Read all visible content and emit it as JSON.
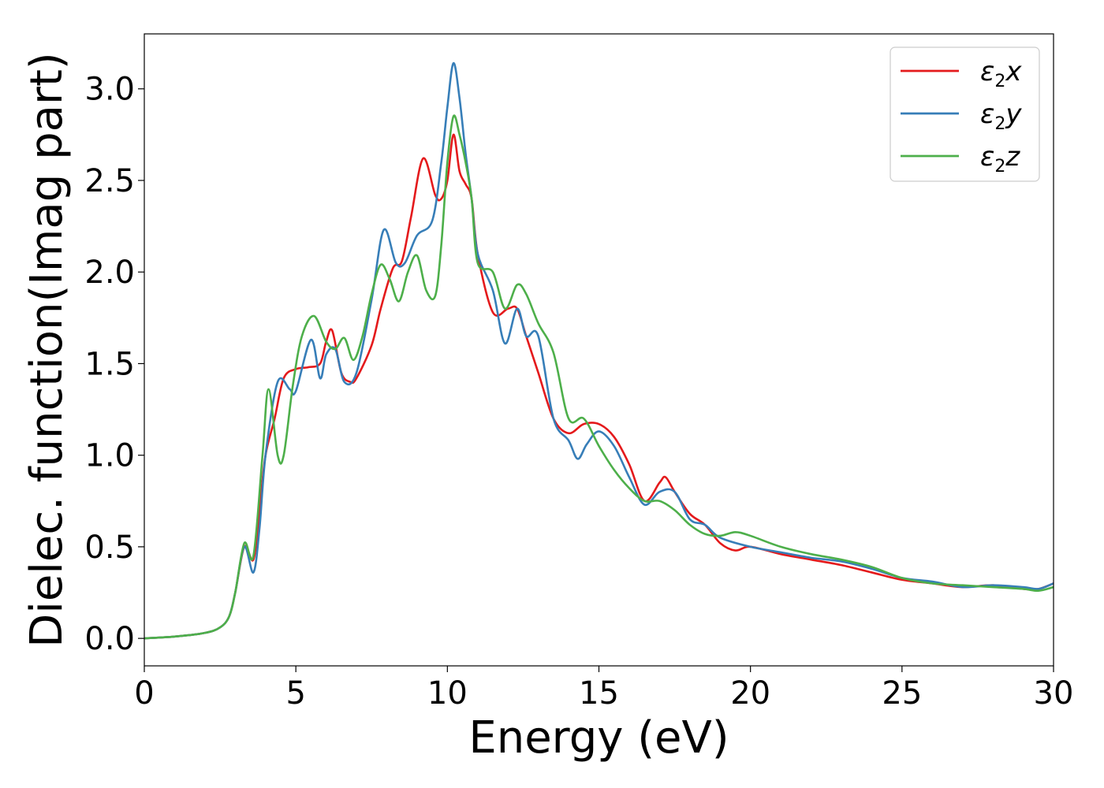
{
  "chart_data": {
    "type": "line",
    "xlabel": "Energy (eV)",
    "ylabel": "Dielec. function(Imag part)",
    "xlim": [
      0,
      30
    ],
    "ylim": [
      -0.15,
      3.3
    ],
    "xticks": [
      0,
      5,
      10,
      15,
      20,
      25,
      30
    ],
    "xtick_labels": [
      "0",
      "5",
      "10",
      "15",
      "20",
      "25",
      "30"
    ],
    "yticks": [
      0.0,
      0.5,
      1.0,
      1.5,
      2.0,
      2.5,
      3.0
    ],
    "ytick_labels": [
      "0.0",
      "0.5",
      "1.0",
      "1.5",
      "2.0",
      "2.5",
      "3.0"
    ],
    "grid": false,
    "legend_position": "top-right",
    "series": [
      {
        "name": "ε₂x",
        "legend_main": "ε",
        "legend_sub": "2",
        "legend_tail": "x",
        "color": "#e41a1c",
        "x": [
          0,
          1,
          2,
          2.5,
          2.8,
          3.0,
          3.3,
          3.6,
          3.8,
          4.0,
          4.3,
          4.6,
          5.0,
          5.4,
          5.8,
          6.0,
          6.2,
          6.5,
          6.8,
          7.0,
          7.5,
          7.8,
          8.2,
          8.5,
          8.8,
          9.2,
          9.6,
          9.8,
          10.0,
          10.2,
          10.4,
          10.6,
          10.8,
          11.0,
          11.5,
          12.0,
          12.3,
          12.6,
          13.0,
          13.5,
          14.0,
          14.5,
          15.0,
          15.5,
          16.0,
          16.5,
          17.0,
          17.2,
          17.5,
          18.0,
          18.5,
          19.0,
          19.5,
          20.0,
          21.0,
          22.0,
          23.0,
          24.0,
          25.0,
          26.0,
          27.0,
          28.0,
          29.0,
          29.5,
          30.0
        ],
        "y": [
          0.0,
          0.01,
          0.03,
          0.06,
          0.12,
          0.25,
          0.5,
          0.43,
          0.7,
          1.0,
          1.2,
          1.42,
          1.47,
          1.48,
          1.5,
          1.62,
          1.68,
          1.45,
          1.4,
          1.42,
          1.6,
          1.8,
          2.02,
          2.06,
          2.3,
          2.62,
          2.42,
          2.4,
          2.5,
          2.75,
          2.55,
          2.48,
          2.4,
          2.1,
          1.78,
          1.8,
          1.8,
          1.65,
          1.45,
          1.2,
          1.12,
          1.17,
          1.17,
          1.1,
          0.95,
          0.75,
          0.85,
          0.88,
          0.8,
          0.68,
          0.62,
          0.52,
          0.48,
          0.5,
          0.46,
          0.43,
          0.4,
          0.36,
          0.32,
          0.3,
          0.28,
          0.29,
          0.27,
          0.27,
          0.3
        ]
      },
      {
        "name": "ε₂y",
        "legend_main": "ε",
        "legend_sub": "2",
        "legend_tail": "y",
        "color": "#377eb8",
        "x": [
          0,
          1,
          2,
          2.5,
          2.8,
          3.0,
          3.3,
          3.6,
          3.8,
          4.0,
          4.4,
          4.8,
          5.0,
          5.5,
          5.8,
          6.0,
          6.3,
          6.6,
          7.0,
          7.5,
          7.9,
          8.3,
          8.6,
          9.0,
          9.5,
          9.8,
          10.0,
          10.2,
          10.4,
          10.6,
          10.8,
          11.0,
          11.5,
          11.9,
          12.3,
          12.6,
          13.0,
          13.5,
          14.0,
          14.3,
          14.6,
          15.0,
          15.5,
          16.0,
          16.5,
          17.0,
          17.5,
          18.0,
          18.5,
          19.0,
          20.0,
          21.0,
          22.0,
          23.0,
          24.0,
          25.0,
          26.0,
          27.0,
          28.0,
          29.0,
          29.5,
          30.0
        ],
        "y": [
          0.0,
          0.01,
          0.03,
          0.06,
          0.12,
          0.25,
          0.5,
          0.36,
          0.6,
          1.0,
          1.4,
          1.36,
          1.35,
          1.63,
          1.42,
          1.55,
          1.58,
          1.4,
          1.45,
          1.85,
          2.23,
          2.05,
          2.05,
          2.2,
          2.28,
          2.6,
          2.9,
          3.14,
          2.95,
          2.65,
          2.4,
          2.1,
          1.9,
          1.61,
          1.8,
          1.65,
          1.65,
          1.2,
          1.08,
          0.98,
          1.06,
          1.13,
          1.05,
          0.88,
          0.73,
          0.8,
          0.8,
          0.65,
          0.62,
          0.55,
          0.5,
          0.47,
          0.44,
          0.42,
          0.38,
          0.33,
          0.31,
          0.28,
          0.29,
          0.28,
          0.27,
          0.3
        ]
      },
      {
        "name": "ε₂z",
        "legend_main": "ε",
        "legend_sub": "2",
        "legend_tail": "z",
        "color": "#4daf4a",
        "x": [
          0,
          1,
          2,
          2.5,
          2.8,
          3.0,
          3.3,
          3.6,
          3.9,
          4.1,
          4.4,
          4.6,
          4.9,
          5.2,
          5.6,
          6.0,
          6.3,
          6.6,
          6.9,
          7.2,
          7.5,
          7.8,
          8.1,
          8.4,
          8.7,
          9.0,
          9.3,
          9.6,
          9.8,
          10.0,
          10.2,
          10.4,
          10.6,
          10.8,
          11.0,
          11.5,
          11.9,
          12.3,
          12.6,
          13.0,
          13.5,
          14.0,
          14.5,
          15.0,
          15.5,
          16.0,
          16.5,
          17.0,
          17.5,
          18.0,
          18.5,
          19.0,
          19.5,
          20.0,
          21.0,
          22.0,
          23.0,
          24.0,
          25.0,
          26.0,
          27.0,
          28.0,
          29.0,
          29.5,
          30.0
        ],
        "y": [
          0.0,
          0.01,
          0.03,
          0.06,
          0.12,
          0.25,
          0.52,
          0.45,
          1.0,
          1.36,
          1.0,
          1.0,
          1.38,
          1.65,
          1.76,
          1.62,
          1.58,
          1.64,
          1.52,
          1.65,
          1.88,
          2.04,
          1.96,
          1.84,
          2.0,
          2.09,
          1.9,
          1.87,
          2.15,
          2.6,
          2.85,
          2.75,
          2.6,
          2.4,
          2.05,
          2.0,
          1.8,
          1.93,
          1.88,
          1.72,
          1.56,
          1.2,
          1.2,
          1.05,
          0.92,
          0.82,
          0.75,
          0.75,
          0.7,
          0.62,
          0.57,
          0.56,
          0.58,
          0.56,
          0.5,
          0.46,
          0.43,
          0.39,
          0.33,
          0.3,
          0.29,
          0.28,
          0.27,
          0.26,
          0.28
        ]
      }
    ]
  }
}
